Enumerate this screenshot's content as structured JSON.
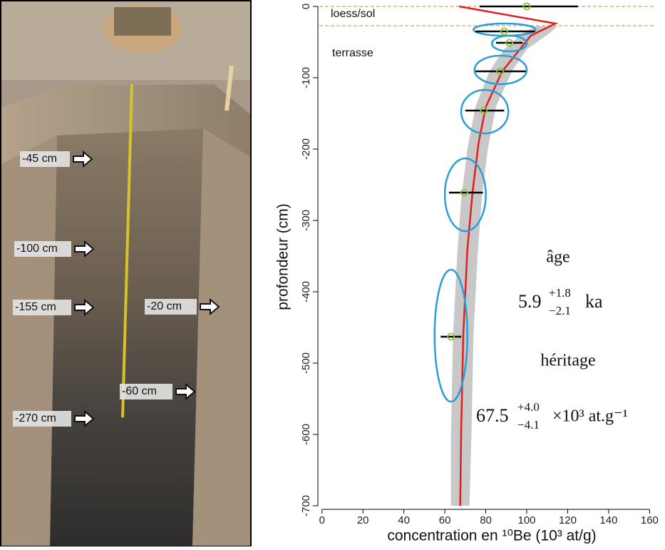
{
  "photo": {
    "labels": [
      "-45 cm",
      "-100 cm",
      "-155 cm",
      "-270 cm",
      "-20 cm",
      "-60 cm"
    ]
  },
  "chart_data": {
    "type": "scatter",
    "xlabel": "concentration en ¹⁰Be (10³ at/g)",
    "ylabel": "profondeur (cm)",
    "xlim": [
      -2,
      163
    ],
    "ylim": [
      -705,
      5
    ],
    "xticks": [
      0,
      20,
      40,
      60,
      80,
      100,
      120,
      140,
      160
    ],
    "yticks": [
      0,
      -100,
      -200,
      -300,
      -400,
      -500,
      -600,
      -700
    ],
    "x": [
      100,
      89,
      91.5,
      87,
      79,
      69.5,
      63
    ],
    "values": [
      0,
      -35,
      -51,
      -91,
      -146,
      -261,
      -463
    ],
    "error_x": [
      [
        77,
        125
      ],
      [
        75,
        104
      ],
      [
        85,
        98
      ],
      [
        75,
        99.5
      ],
      [
        70,
        89
      ],
      [
        62,
        78.6
      ],
      [
        58,
        68
      ]
    ],
    "ellipse_x": [
      null,
      [
        74,
        104.3
      ],
      [
        83,
        100
      ],
      [
        74.5,
        100
      ],
      [
        68,
        91
      ],
      [
        60,
        80
      ],
      [
        55,
        71
      ]
    ],
    "ellipse_y": [
      null,
      [
        -24,
        -41
      ],
      [
        -41,
        -63
      ],
      [
        -69,
        -109
      ],
      [
        -117,
        -178
      ],
      [
        -213,
        -315
      ],
      [
        -369,
        -554
      ]
    ],
    "point_color": "#8fc33a",
    "ellipse_color": "#2a9fd6",
    "error_color": "#000000",
    "model": {
      "color": "#e02020",
      "x": [
        67,
        114,
        102,
        88,
        80,
        76.5,
        73.5,
        71,
        69,
        68,
        67.5
      ],
      "values": [
        0,
        -24,
        -41,
        -91,
        -141,
        -191,
        -261,
        -341,
        -461,
        -591,
        -700
      ]
    },
    "envelope": {
      "color": "#c8c8c8",
      "values": [
        -28,
        -40,
        -60,
        -90,
        -140,
        -200,
        -270,
        -350,
        -460,
        -600,
        -700
      ],
      "low": [
        104,
        97,
        89,
        82,
        75,
        71,
        68,
        66,
        64,
        63,
        63
      ],
      "high": [
        115,
        110,
        100,
        93,
        85,
        81,
        78,
        76,
        74,
        73,
        72
      ]
    },
    "boundaries": [
      0,
      -27
    ],
    "boundary_color": "#d4a060",
    "layers": [
      "loess/sol",
      "terrasse"
    ],
    "annotations": {
      "age_label": "âge",
      "age_value": "5.9",
      "age_plus": "+1.8",
      "age_minus": "−2.1",
      "age_unit": "ka",
      "heritage_label": "héritage",
      "heritage_value": "67.5",
      "heritage_plus": "+4.0",
      "heritage_minus": "−4.1",
      "heritage_unit": "×10³ at.g⁻¹"
    }
  }
}
